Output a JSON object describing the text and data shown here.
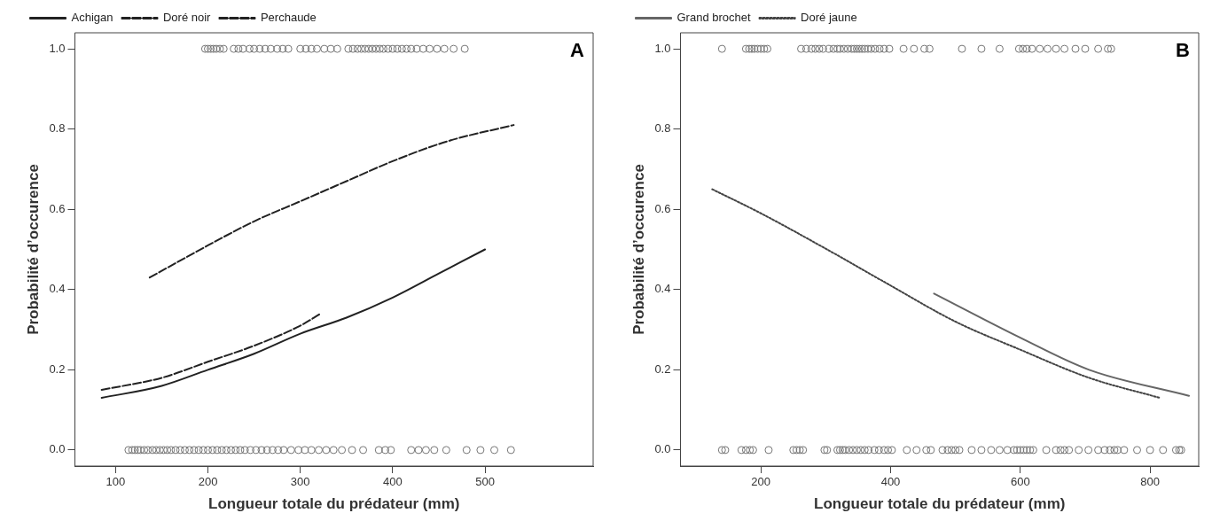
{
  "chart_data": [
    {
      "type": "line",
      "xlabel": "Longueur totale du prédateur (mm)",
      "ylabel": "Probabilité d’occurence",
      "annotations": [
        "A"
      ],
      "legend": "top left",
      "grid": false,
      "xlim": [
        56,
        617
      ],
      "xticks": [
        100,
        200,
        300,
        400,
        500
      ],
      "ylim": [
        -0.04,
        1.04
      ],
      "yticks": [
        {
          "value": 0,
          "label": "0.0"
        },
        {
          "value": 0.2,
          "label": "0.2"
        },
        {
          "value": 0.4,
          "label": "0.4"
        },
        {
          "value": 0.6,
          "label": "0.6"
        },
        {
          "value": 0.8,
          "label": "0.8"
        },
        {
          "value": 1,
          "label": "1.0"
        }
      ],
      "series": [
        {
          "name": "Achigan",
          "color": "#222222",
          "line_style": "solid",
          "x": [
            85,
            150,
            200,
            250,
            300,
            350,
            400,
            450,
            500
          ],
          "values": [
            0.13,
            0.16,
            0.2,
            0.24,
            0.29,
            0.33,
            0.38,
            0.44,
            0.5
          ]
        },
        {
          "name": "Doré noir",
          "color": "#222222",
          "line_style": "dashed",
          "x": [
            137,
            200,
            250,
            300,
            350,
            400,
            460,
            531
          ],
          "values": [
            0.43,
            0.51,
            0.57,
            0.62,
            0.67,
            0.72,
            0.77,
            0.81
          ]
        },
        {
          "name": "Perchaude",
          "color": "#222222",
          "line_style": "dashed",
          "x": [
            85,
            150,
            200,
            250,
            300,
            322
          ],
          "values": [
            0.15,
            0.18,
            0.22,
            0.26,
            0.31,
            0.34
          ]
        },
        {
          "type": "scatter",
          "marker": "circle",
          "color": "#777777",
          "x": [
            197,
            200,
            203,
            206,
            209,
            213,
            217,
            228,
            233,
            238,
            245,
            250,
            256,
            262,
            268,
            275,
            281,
            287,
            300,
            306,
            312,
            318,
            326,
            333,
            340,
            352,
            357,
            362,
            366,
            370,
            374,
            378,
            382,
            386,
            390,
            395,
            400,
            405,
            410,
            415,
            420,
            426,
            433,
            440,
            448,
            456,
            466,
            478
          ],
          "values": [
            1,
            1,
            1,
            1,
            1,
            1,
            1,
            1,
            1,
            1,
            1,
            1,
            1,
            1,
            1,
            1,
            1,
            1,
            1,
            1,
            1,
            1,
            1,
            1,
            1,
            1,
            1,
            1,
            1,
            1,
            1,
            1,
            1,
            1,
            1,
            1,
            1,
            1,
            1,
            1,
            1,
            1,
            1,
            1,
            1,
            1,
            1,
            1
          ]
        },
        {
          "type": "scatter",
          "marker": "circle",
          "color": "#777777",
          "x": [
            114,
            118,
            121,
            124,
            127,
            131,
            135,
            140,
            144,
            148,
            152,
            156,
            160,
            165,
            170,
            175,
            180,
            185,
            190,
            195,
            200,
            205,
            210,
            215,
            220,
            225,
            230,
            235,
            240,
            246,
            252,
            258,
            264,
            270,
            276,
            282,
            290,
            298,
            305,
            312,
            320,
            328,
            336,
            345,
            356,
            368,
            385,
            392,
            398,
            420,
            428,
            436,
            445,
            458,
            480,
            495,
            510,
            528
          ],
          "values": [
            0,
            0,
            0,
            0,
            0,
            0,
            0,
            0,
            0,
            0,
            0,
            0,
            0,
            0,
            0,
            0,
            0,
            0,
            0,
            0,
            0,
            0,
            0,
            0,
            0,
            0,
            0,
            0,
            0,
            0,
            0,
            0,
            0,
            0,
            0,
            0,
            0,
            0,
            0,
            0,
            0,
            0,
            0,
            0,
            0,
            0,
            0,
            0,
            0,
            0,
            0,
            0,
            0,
            0,
            0,
            0,
            0,
            0
          ]
        }
      ]
    },
    {
      "type": "line",
      "xlabel": "Longueur totale du prédateur (mm)",
      "ylabel": "Probabilité d’occurence",
      "annotations": [
        "B"
      ],
      "legend": "top left",
      "grid": false,
      "xlim": [
        76,
        875
      ],
      "xticks": [
        200,
        400,
        600,
        800
      ],
      "ylim": [
        -0.04,
        1.04
      ],
      "yticks": [
        {
          "value": 0,
          "label": "0.0"
        },
        {
          "value": 0.2,
          "label": "0.2"
        },
        {
          "value": 0.4,
          "label": "0.4"
        },
        {
          "value": 0.6,
          "label": "0.6"
        },
        {
          "value": 0.8,
          "label": "0.8"
        },
        {
          "value": 1,
          "label": "1.0"
        }
      ],
      "series": [
        {
          "name": "Grand brochet",
          "color": "#666666",
          "line_style": "solid",
          "x": [
            467,
            600,
            706,
            860
          ],
          "values": [
            0.39,
            0.28,
            0.2,
            0.135
          ]
        },
        {
          "name": "Doré jaune",
          "color": "#444444",
          "line_style": "dotted",
          "x": [
            125,
            200,
            302,
            400,
            500,
            600,
            706,
            815
          ],
          "values": [
            0.65,
            0.59,
            0.5,
            0.41,
            0.32,
            0.25,
            0.18,
            0.13
          ]
        },
        {
          "type": "scatter",
          "marker": "circle",
          "color": "#777777",
          "x": [
            140,
            177,
            182,
            186,
            190,
            195,
            200,
            205,
            210,
            262,
            270,
            278,
            284,
            290,
            296,
            305,
            312,
            318,
            322,
            328,
            334,
            340,
            344,
            348,
            352,
            356,
            360,
            365,
            370,
            376,
            383,
            390,
            398,
            420,
            436,
            452,
            460,
            510,
            540,
            568,
            598,
            604,
            610,
            618,
            630,
            642,
            655,
            668,
            685,
            700,
            720,
            735,
            740
          ],
          "values": [
            1,
            1,
            1,
            1,
            1,
            1,
            1,
            1,
            1,
            1,
            1,
            1,
            1,
            1,
            1,
            1,
            1,
            1,
            1,
            1,
            1,
            1,
            1,
            1,
            1,
            1,
            1,
            1,
            1,
            1,
            1,
            1,
            1,
            1,
            1,
            1,
            1,
            1,
            1,
            1,
            1,
            1,
            1,
            1,
            1,
            1,
            1,
            1,
            1,
            1,
            1,
            1,
            1
          ]
        },
        {
          "type": "scatter",
          "marker": "circle",
          "color": "#777777",
          "x": [
            140,
            145,
            170,
            177,
            183,
            188,
            212,
            250,
            255,
            260,
            265,
            298,
            302,
            318,
            322,
            326,
            330,
            336,
            342,
            348,
            354,
            360,
            366,
            375,
            382,
            390,
            396,
            402,
            425,
            440,
            455,
            462,
            480,
            488,
            494,
            500,
            506,
            525,
            540,
            555,
            568,
            580,
            590,
            595,
            600,
            605,
            610,
            615,
            620,
            640,
            655,
            662,
            668,
            675,
            690,
            705,
            720,
            730,
            738,
            745,
            750,
            760,
            780,
            800,
            820,
            840,
            845,
            848
          ],
          "values": [
            0,
            0,
            0,
            0,
            0,
            0,
            0,
            0,
            0,
            0,
            0,
            0,
            0,
            0,
            0,
            0,
            0,
            0,
            0,
            0,
            0,
            0,
            0,
            0,
            0,
            0,
            0,
            0,
            0,
            0,
            0,
            0,
            0,
            0,
            0,
            0,
            0,
            0,
            0,
            0,
            0,
            0,
            0,
            0,
            0,
            0,
            0,
            0,
            0,
            0,
            0,
            0,
            0,
            0,
            0,
            0,
            0,
            0,
            0,
            0,
            0,
            0,
            0,
            0,
            0,
            0,
            0,
            0
          ]
        }
      ]
    }
  ]
}
